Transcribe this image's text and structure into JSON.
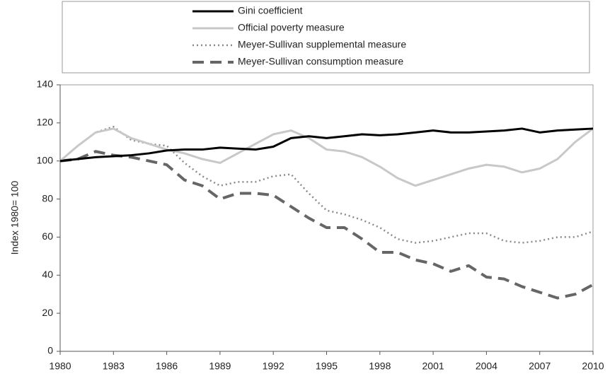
{
  "chart_data": {
    "type": "line",
    "ylabel": "Index 1980= 100",
    "x": [
      1980,
      1981,
      1982,
      1983,
      1984,
      1985,
      1986,
      1987,
      1988,
      1989,
      1990,
      1991,
      1992,
      1993,
      1994,
      1995,
      1996,
      1997,
      1998,
      1999,
      2000,
      2001,
      2002,
      2003,
      2004,
      2005,
      2006,
      2007,
      2008,
      2009,
      2010
    ],
    "xlim": [
      1980,
      2010
    ],
    "xticks": [
      1980,
      1983,
      1986,
      1989,
      1992,
      1995,
      1998,
      2001,
      2004,
      2007,
      2010
    ],
    "ylim": [
      0,
      140
    ],
    "yticks": [
      0,
      20,
      40,
      60,
      80,
      100,
      120,
      140
    ],
    "legend": "top",
    "series": [
      {
        "name": "Gini coefficient",
        "color": "#000000",
        "style": "solid",
        "values": [
          100,
          101,
          102,
          102.5,
          103,
          104,
          105.5,
          106,
          106,
          107,
          106.5,
          106,
          107.5,
          112,
          113,
          112,
          113,
          114,
          113.5,
          114,
          115,
          116,
          115,
          115,
          115.5,
          116,
          117,
          115,
          116,
          116.5,
          117
        ]
      },
      {
        "name": "Official poverty measure",
        "color": "#c8c8c8",
        "style": "solid",
        "values": [
          100,
          108,
          115,
          117,
          112,
          109,
          106,
          104,
          101,
          99,
          104,
          109,
          114,
          116,
          112,
          106,
          105,
          102,
          97,
          91,
          87,
          90,
          93,
          96,
          98,
          97,
          94,
          96,
          101,
          110,
          117
        ]
      },
      {
        "name": "Meyer-Sullivan supplemental measure",
        "color": "#8a8a8a",
        "style": "dotted",
        "values": [
          100,
          108,
          115,
          118,
          111,
          109,
          108,
          99,
          92,
          87,
          89,
          89,
          92,
          93,
          83,
          74,
          72,
          69,
          65,
          59,
          57,
          58,
          60,
          62,
          62,
          58,
          57,
          58,
          60,
          60,
          63
        ]
      },
      {
        "name": "Meyer-Sullivan consumption measure",
        "color": "#666666",
        "style": "dashed",
        "values": [
          100,
          101,
          105,
          103,
          102,
          100,
          98,
          90,
          87,
          80,
          83,
          83,
          82,
          76,
          70,
          65,
          65,
          59,
          52,
          52,
          48,
          46,
          42,
          45,
          39,
          38,
          34,
          31,
          28,
          30,
          35
        ]
      }
    ]
  }
}
